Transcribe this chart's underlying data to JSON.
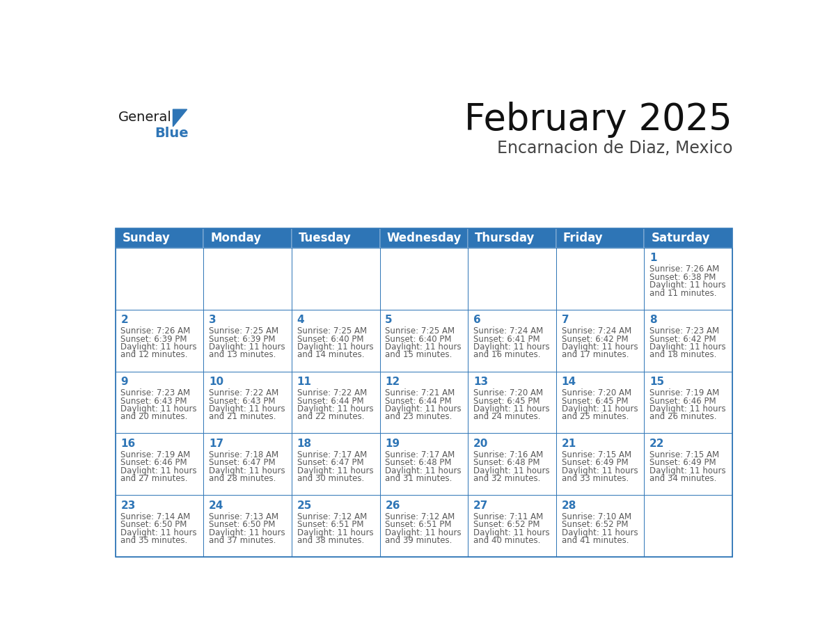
{
  "title": "February 2025",
  "subtitle": "Encarnacion de Diaz, Mexico",
  "header_bg_color": "#2e75b6",
  "header_text_color": "#ffffff",
  "cell_bg_color": "#ffffff",
  "cell_text_color": "#595959",
  "day_number_color": "#2e75b6",
  "border_color": "#2e75b6",
  "grid_line_color": "#aaaaaa",
  "days_of_week": [
    "Sunday",
    "Monday",
    "Tuesday",
    "Wednesday",
    "Thursday",
    "Friday",
    "Saturday"
  ],
  "weeks": [
    [
      {
        "day": null
      },
      {
        "day": null
      },
      {
        "day": null
      },
      {
        "day": null
      },
      {
        "day": null
      },
      {
        "day": null
      },
      {
        "day": 1,
        "sunrise": "7:26 AM",
        "sunset": "6:38 PM",
        "daylight": "11 hours",
        "daylight2": "and 11 minutes."
      }
    ],
    [
      {
        "day": 2,
        "sunrise": "7:26 AM",
        "sunset": "6:39 PM",
        "daylight": "11 hours",
        "daylight2": "and 12 minutes."
      },
      {
        "day": 3,
        "sunrise": "7:25 AM",
        "sunset": "6:39 PM",
        "daylight": "11 hours",
        "daylight2": "and 13 minutes."
      },
      {
        "day": 4,
        "sunrise": "7:25 AM",
        "sunset": "6:40 PM",
        "daylight": "11 hours",
        "daylight2": "and 14 minutes."
      },
      {
        "day": 5,
        "sunrise": "7:25 AM",
        "sunset": "6:40 PM",
        "daylight": "11 hours",
        "daylight2": "and 15 minutes."
      },
      {
        "day": 6,
        "sunrise": "7:24 AM",
        "sunset": "6:41 PM",
        "daylight": "11 hours",
        "daylight2": "and 16 minutes."
      },
      {
        "day": 7,
        "sunrise": "7:24 AM",
        "sunset": "6:42 PM",
        "daylight": "11 hours",
        "daylight2": "and 17 minutes."
      },
      {
        "day": 8,
        "sunrise": "7:23 AM",
        "sunset": "6:42 PM",
        "daylight": "11 hours",
        "daylight2": "and 18 minutes."
      }
    ],
    [
      {
        "day": 9,
        "sunrise": "7:23 AM",
        "sunset": "6:43 PM",
        "daylight": "11 hours",
        "daylight2": "and 20 minutes."
      },
      {
        "day": 10,
        "sunrise": "7:22 AM",
        "sunset": "6:43 PM",
        "daylight": "11 hours",
        "daylight2": "and 21 minutes."
      },
      {
        "day": 11,
        "sunrise": "7:22 AM",
        "sunset": "6:44 PM",
        "daylight": "11 hours",
        "daylight2": "and 22 minutes."
      },
      {
        "day": 12,
        "sunrise": "7:21 AM",
        "sunset": "6:44 PM",
        "daylight": "11 hours",
        "daylight2": "and 23 minutes."
      },
      {
        "day": 13,
        "sunrise": "7:20 AM",
        "sunset": "6:45 PM",
        "daylight": "11 hours",
        "daylight2": "and 24 minutes."
      },
      {
        "day": 14,
        "sunrise": "7:20 AM",
        "sunset": "6:45 PM",
        "daylight": "11 hours",
        "daylight2": "and 25 minutes."
      },
      {
        "day": 15,
        "sunrise": "7:19 AM",
        "sunset": "6:46 PM",
        "daylight": "11 hours",
        "daylight2": "and 26 minutes."
      }
    ],
    [
      {
        "day": 16,
        "sunrise": "7:19 AM",
        "sunset": "6:46 PM",
        "daylight": "11 hours",
        "daylight2": "and 27 minutes."
      },
      {
        "day": 17,
        "sunrise": "7:18 AM",
        "sunset": "6:47 PM",
        "daylight": "11 hours",
        "daylight2": "and 28 minutes."
      },
      {
        "day": 18,
        "sunrise": "7:17 AM",
        "sunset": "6:47 PM",
        "daylight": "11 hours",
        "daylight2": "and 30 minutes."
      },
      {
        "day": 19,
        "sunrise": "7:17 AM",
        "sunset": "6:48 PM",
        "daylight": "11 hours",
        "daylight2": "and 31 minutes."
      },
      {
        "day": 20,
        "sunrise": "7:16 AM",
        "sunset": "6:48 PM",
        "daylight": "11 hours",
        "daylight2": "and 32 minutes."
      },
      {
        "day": 21,
        "sunrise": "7:15 AM",
        "sunset": "6:49 PM",
        "daylight": "11 hours",
        "daylight2": "and 33 minutes."
      },
      {
        "day": 22,
        "sunrise": "7:15 AM",
        "sunset": "6:49 PM",
        "daylight": "11 hours",
        "daylight2": "and 34 minutes."
      }
    ],
    [
      {
        "day": 23,
        "sunrise": "7:14 AM",
        "sunset": "6:50 PM",
        "daylight": "11 hours",
        "daylight2": "and 35 minutes."
      },
      {
        "day": 24,
        "sunrise": "7:13 AM",
        "sunset": "6:50 PM",
        "daylight": "11 hours",
        "daylight2": "and 37 minutes."
      },
      {
        "day": 25,
        "sunrise": "7:12 AM",
        "sunset": "6:51 PM",
        "daylight": "11 hours",
        "daylight2": "and 38 minutes."
      },
      {
        "day": 26,
        "sunrise": "7:12 AM",
        "sunset": "6:51 PM",
        "daylight": "11 hours",
        "daylight2": "and 39 minutes."
      },
      {
        "day": 27,
        "sunrise": "7:11 AM",
        "sunset": "6:52 PM",
        "daylight": "11 hours",
        "daylight2": "and 40 minutes."
      },
      {
        "day": 28,
        "sunrise": "7:10 AM",
        "sunset": "6:52 PM",
        "daylight": "11 hours",
        "daylight2": "and 41 minutes."
      },
      {
        "day": null
      }
    ]
  ],
  "logo_general_color": "#1a1a1a",
  "logo_blue_color": "#2e75b6",
  "title_fontsize": 38,
  "subtitle_fontsize": 17,
  "header_fontsize": 12,
  "day_num_fontsize": 11,
  "cell_text_fontsize": 8.5
}
